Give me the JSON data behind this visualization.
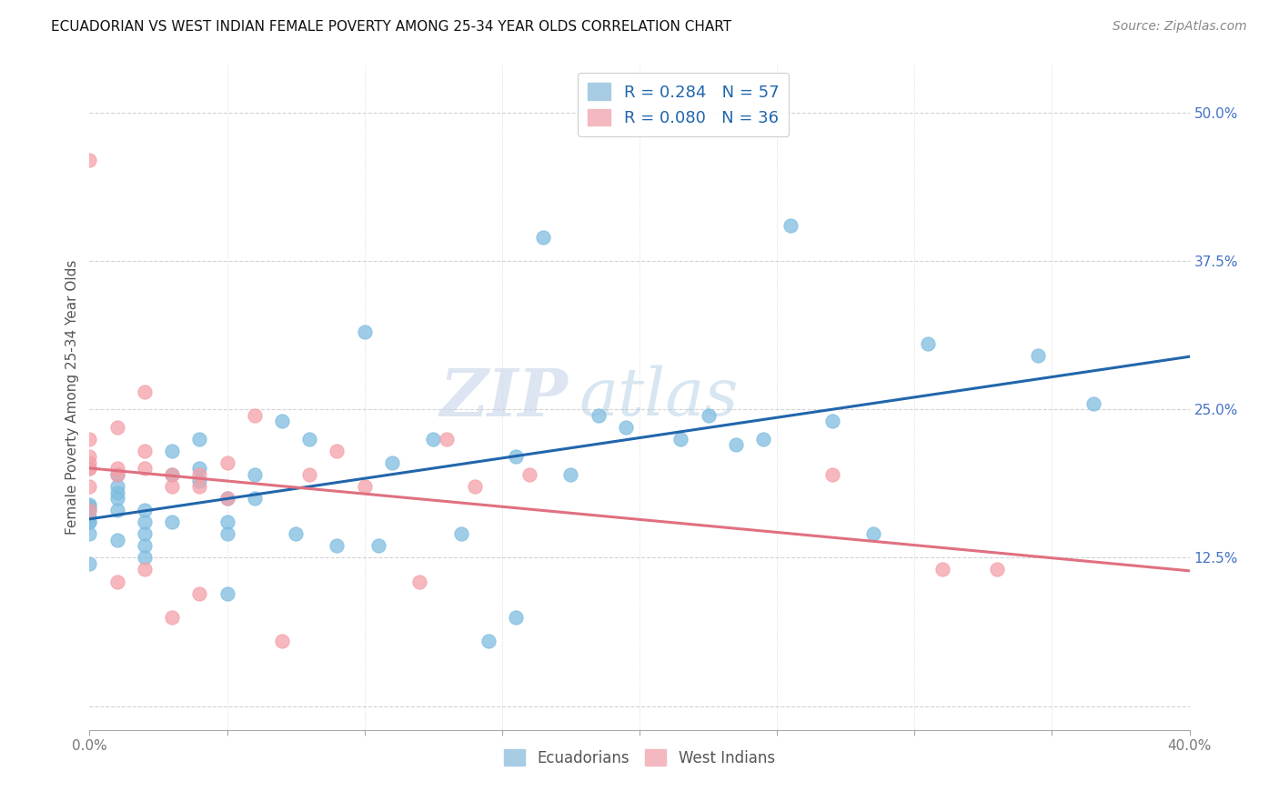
{
  "title": "ECUADORIAN VS WEST INDIAN FEMALE POVERTY AMONG 25-34 YEAR OLDS CORRELATION CHART",
  "source": "Source: ZipAtlas.com",
  "ylabel": "Female Poverty Among 25-34 Year Olds",
  "xlim": [
    0.0,
    0.4
  ],
  "ylim": [
    -0.02,
    0.54
  ],
  "ecuadorians": {
    "x": [
      0.0,
      0.0,
      0.0,
      0.0,
      0.0,
      0.0,
      0.0,
      0.0,
      0.01,
      0.01,
      0.01,
      0.01,
      0.01,
      0.01,
      0.02,
      0.02,
      0.02,
      0.02,
      0.02,
      0.03,
      0.03,
      0.03,
      0.04,
      0.04,
      0.04,
      0.05,
      0.05,
      0.05,
      0.05,
      0.06,
      0.06,
      0.07,
      0.075,
      0.08,
      0.09,
      0.1,
      0.105,
      0.11,
      0.125,
      0.135,
      0.145,
      0.155,
      0.165,
      0.185,
      0.195,
      0.225,
      0.245,
      0.255,
      0.285,
      0.305,
      0.345,
      0.365,
      0.155,
      0.235,
      0.175,
      0.215,
      0.27
    ],
    "y": [
      0.17,
      0.16,
      0.168,
      0.155,
      0.145,
      0.165,
      0.155,
      0.12,
      0.195,
      0.185,
      0.18,
      0.175,
      0.165,
      0.14,
      0.155,
      0.165,
      0.145,
      0.125,
      0.135,
      0.215,
      0.195,
      0.155,
      0.225,
      0.2,
      0.19,
      0.175,
      0.155,
      0.145,
      0.095,
      0.195,
      0.175,
      0.24,
      0.145,
      0.225,
      0.135,
      0.315,
      0.135,
      0.205,
      0.225,
      0.145,
      0.055,
      0.075,
      0.395,
      0.245,
      0.235,
      0.245,
      0.225,
      0.405,
      0.145,
      0.305,
      0.295,
      0.255,
      0.21,
      0.22,
      0.195,
      0.225,
      0.24
    ],
    "color": "#7fbde0",
    "R": 0.284,
    "N": 57
  },
  "west_indians": {
    "x": [
      0.0,
      0.0,
      0.0,
      0.0,
      0.0,
      0.0,
      0.0,
      0.0,
      0.01,
      0.01,
      0.01,
      0.01,
      0.02,
      0.02,
      0.02,
      0.02,
      0.03,
      0.03,
      0.03,
      0.04,
      0.04,
      0.04,
      0.05,
      0.05,
      0.06,
      0.07,
      0.08,
      0.09,
      0.1,
      0.12,
      0.13,
      0.14,
      0.16,
      0.27,
      0.31,
      0.33
    ],
    "y": [
      0.225,
      0.205,
      0.2,
      0.21,
      0.185,
      0.2,
      0.165,
      0.46,
      0.235,
      0.195,
      0.2,
      0.105,
      0.265,
      0.215,
      0.2,
      0.115,
      0.195,
      0.185,
      0.075,
      0.195,
      0.185,
      0.095,
      0.205,
      0.175,
      0.245,
      0.055,
      0.195,
      0.215,
      0.185,
      0.105,
      0.225,
      0.185,
      0.195,
      0.195,
      0.115,
      0.115
    ],
    "color": "#f4a0a8",
    "R": 0.08,
    "N": 36
  },
  "blue_line_color": "#2166ac",
  "pink_line_color": "#e07080",
  "watermark_zip": "ZIP",
  "watermark_atlas": "atlas",
  "background_color": "#ffffff",
  "grid_color": "#c8c8c8",
  "y_ticks": [
    0.0,
    0.125,
    0.25,
    0.375,
    0.5
  ],
  "y_tick_labels": [
    "",
    "12.5%",
    "25.0%",
    "37.5%",
    "50.0%"
  ]
}
